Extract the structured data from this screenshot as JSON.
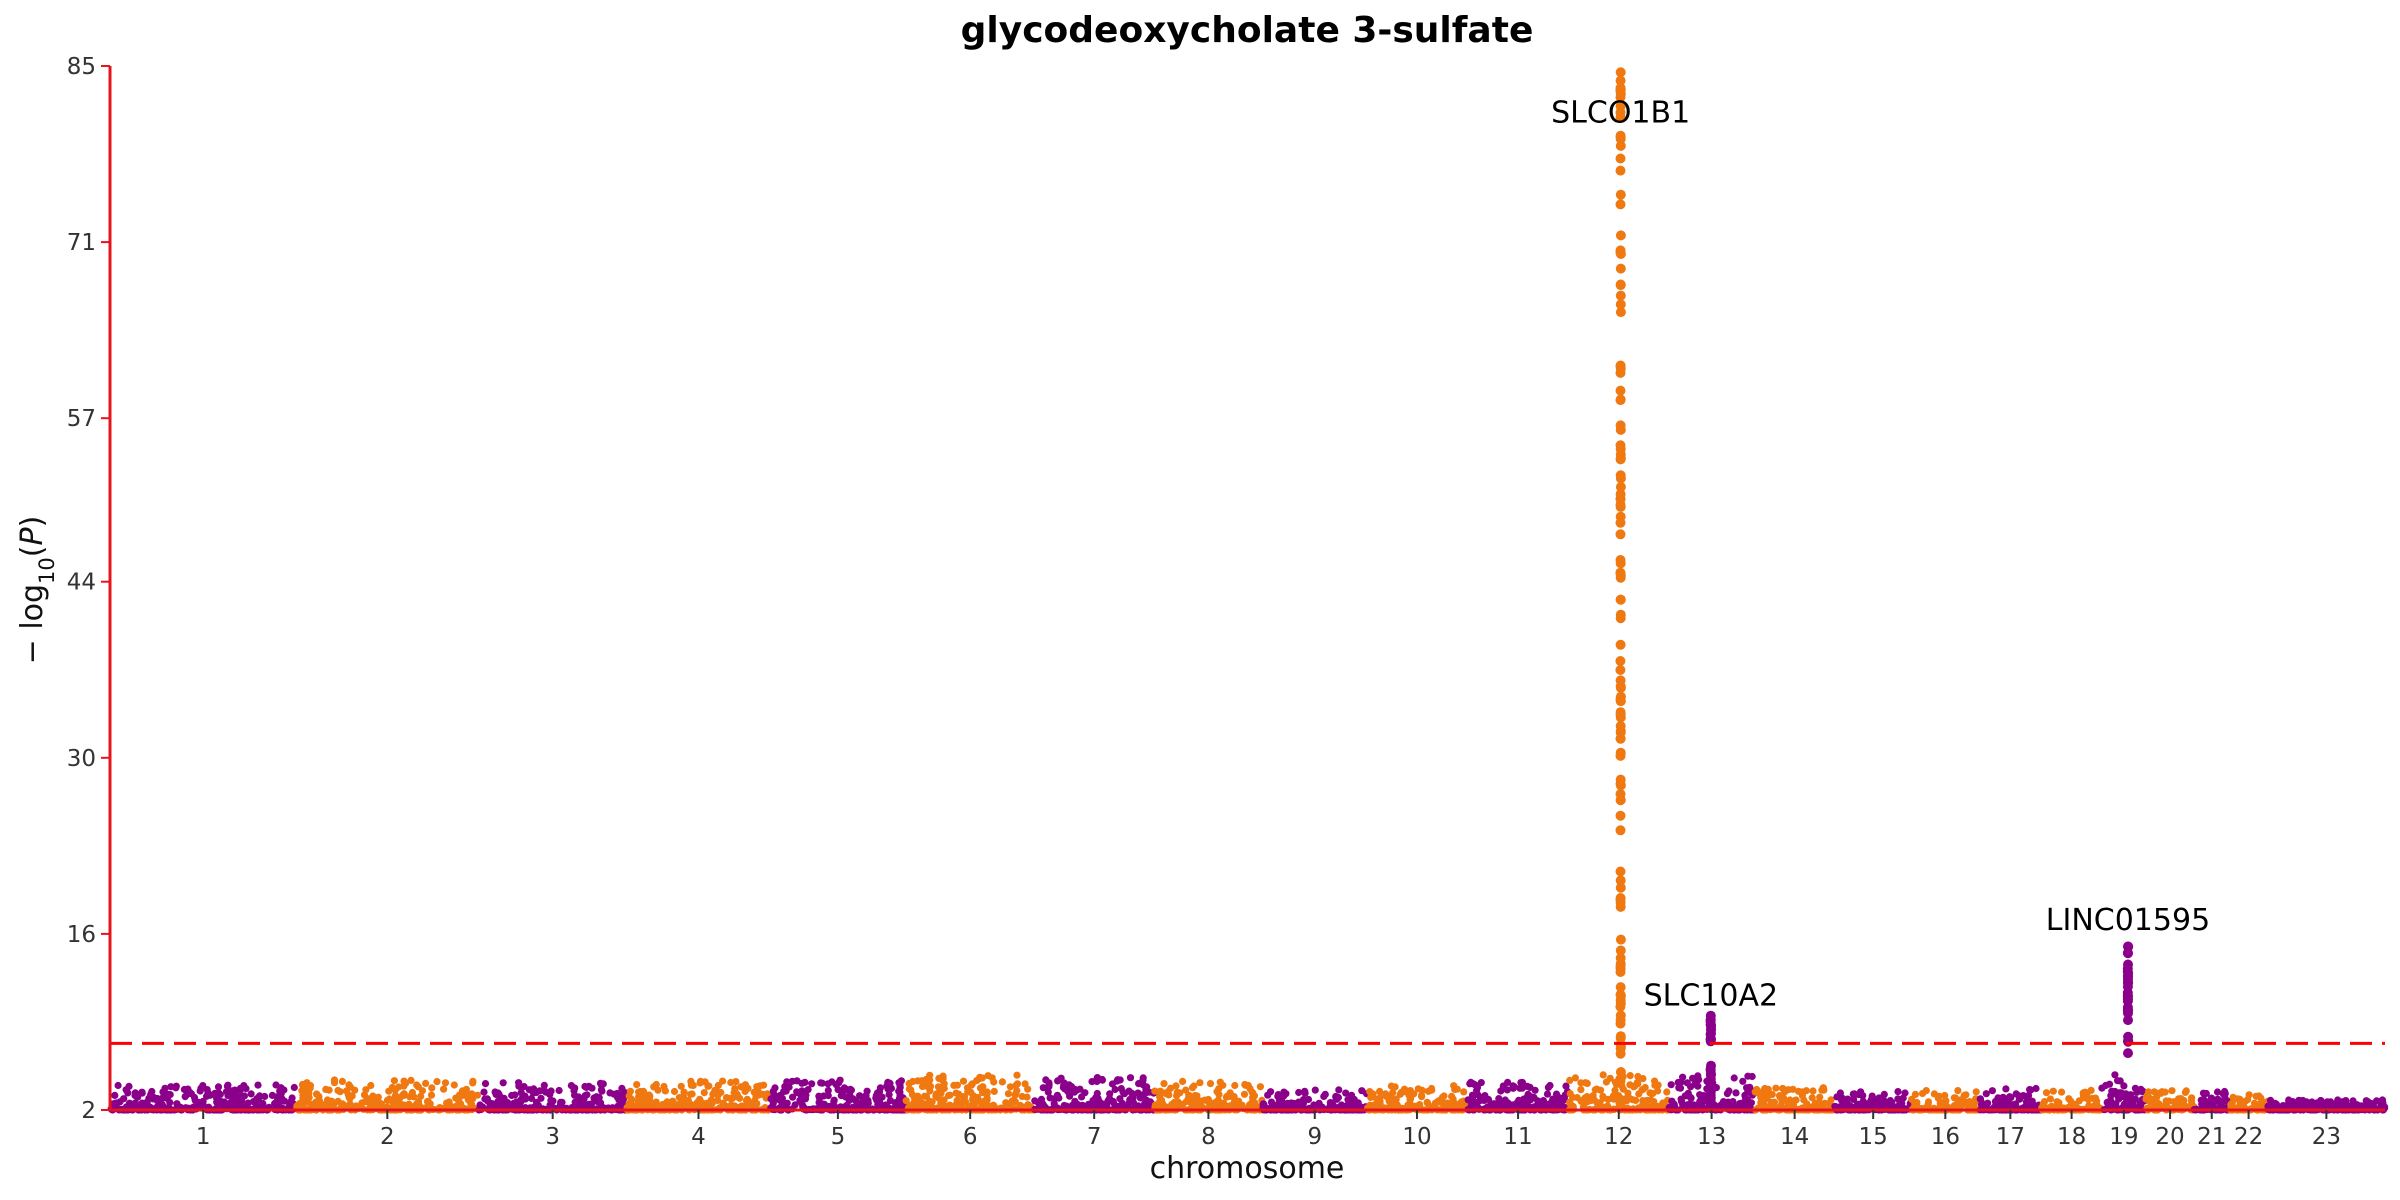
{
  "chart_data": {
    "type": "scatter",
    "subtype": "manhattan",
    "title": "glycodeoxycholate 3-sulfate",
    "xlabel": "chromosome",
    "ylabel": "−log10(P)",
    "ylim": [
      2,
      85
    ],
    "yticks": [
      2,
      16,
      30,
      44,
      57,
      71,
      85
    ],
    "grid": false,
    "legend": "none",
    "colors": {
      "odd": "#8B008B",
      "even": "#F07810",
      "axis": "#E8141C",
      "threshold": "#FF0000"
    },
    "significance_threshold": 7.3,
    "chromosomes": [
      {
        "label": "1",
        "start": 0,
        "end": 248,
        "max_bg": 4.0
      },
      {
        "label": "2",
        "start": 248,
        "end": 490,
        "max_bg": 4.6
      },
      {
        "label": "3",
        "start": 490,
        "end": 688,
        "max_bg": 4.2
      },
      {
        "label": "4",
        "start": 688,
        "end": 878,
        "max_bg": 4.3
      },
      {
        "label": "5",
        "start": 878,
        "end": 1059,
        "max_bg": 4.4
      },
      {
        "label": "6",
        "start": 1059,
        "end": 1230,
        "max_bg": 4.8
      },
      {
        "label": "7",
        "start": 1230,
        "end": 1389,
        "max_bg": 4.6
      },
      {
        "label": "8",
        "start": 1389,
        "end": 1534,
        "max_bg": 4.3
      },
      {
        "label": "9",
        "start": 1534,
        "end": 1672,
        "max_bg": 3.6
      },
      {
        "label": "10",
        "start": 1672,
        "end": 1806,
        "max_bg": 4.0
      },
      {
        "label": "11",
        "start": 1806,
        "end": 1941,
        "max_bg": 4.2
      },
      {
        "label": "12",
        "start": 1941,
        "end": 2074,
        "max_bg": 84.0
      },
      {
        "label": "13",
        "start": 2074,
        "end": 2188,
        "max_bg": 9.5
      },
      {
        "label": "14",
        "start": 2188,
        "end": 2295,
        "max_bg": 3.8
      },
      {
        "label": "15",
        "start": 2295,
        "end": 2397,
        "max_bg": 3.5
      },
      {
        "label": "16",
        "start": 2397,
        "end": 2487,
        "max_bg": 3.6
      },
      {
        "label": "17",
        "start": 2487,
        "end": 2570,
        "max_bg": 3.8
      },
      {
        "label": "18",
        "start": 2570,
        "end": 2650,
        "max_bg": 3.6
      },
      {
        "label": "19",
        "start": 2650,
        "end": 2709,
        "max_bg": 15.0
      },
      {
        "label": "20",
        "start": 2709,
        "end": 2773,
        "max_bg": 3.6
      },
      {
        "label": "21",
        "start": 2773,
        "end": 2820,
        "max_bg": 3.5
      },
      {
        "label": "22",
        "start": 2820,
        "end": 2871,
        "max_bg": 3.3
      },
      {
        "label": "23",
        "start": 2871,
        "end": 3027,
        "max_bg": 2.8
      }
    ],
    "peaks": [
      {
        "chromosome": "12",
        "pos": 2010,
        "max": 84.5,
        "gene": "SLCO1B1"
      },
      {
        "chromosome": "13",
        "pos": 2130,
        "max": 9.5,
        "gene": "SLC10A2"
      },
      {
        "chromosome": "19",
        "pos": 2685,
        "max": 15.0,
        "gene": "LINC01595"
      }
    ],
    "annotations": [
      {
        "text": "SLCO1B1",
        "x": 2010,
        "y": 80.5
      },
      {
        "text": "SLC10A2",
        "x": 2130,
        "y": 10.3
      },
      {
        "text": "LINC01595",
        "x": 2685,
        "y": 16.3
      }
    ]
  }
}
